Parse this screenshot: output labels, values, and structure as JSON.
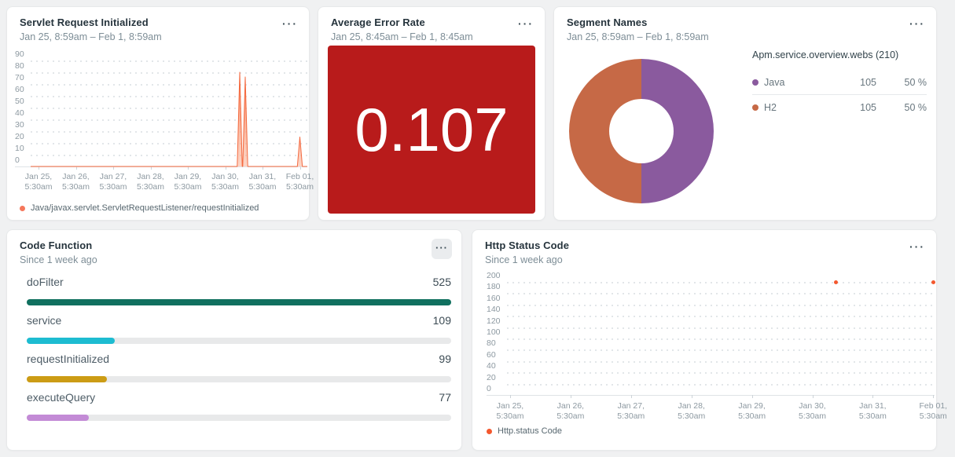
{
  "icons": {
    "overflow": "···"
  },
  "panels": {
    "servlet_request": {
      "title": "Servlet Request Initialized",
      "subtitle": "Jan 25, 8:59am – Feb 1, 8:59am",
      "legend_label": "Java/javax.servlet.ServletRequestListener/requestInitialized"
    },
    "error_rate": {
      "title": "Average Error Rate",
      "subtitle": "Jan 25, 8:45am – Feb 1, 8:45am",
      "value": "0.107"
    },
    "segment_names": {
      "title": "Segment Names",
      "subtitle": "Jan 25, 8:59am – Feb 1, 8:59am",
      "table_header": "Apm.service.overview.webs (210)"
    },
    "code_function": {
      "title": "Code Function",
      "subtitle": "Since 1 week ago"
    },
    "http_status": {
      "title": "Http Status Code",
      "subtitle": "Since 1 week ago",
      "legend_label": "Http.status Code"
    }
  },
  "chart_data": [
    {
      "id": "servlet_area",
      "type": "area",
      "title": "Servlet Request Initialized",
      "time_range": "Jan 25, 8:59am – Feb 1, 8:59am",
      "ylim": [
        0,
        90
      ],
      "y_ticks": [
        90,
        80,
        70,
        60,
        50,
        40,
        30,
        20,
        10,
        0
      ],
      "x_ticks": [
        "Jan 25,\n5:30am",
        "Jan 26,\n5:30am",
        "Jan 27,\n5:30am",
        "Jan 28,\n5:30am",
        "Jan 29,\n5:30am",
        "Jan 30,\n5:30am",
        "Jan 31,\n5:30am",
        "Feb 01,\n5:30am"
      ],
      "grid": "dotted",
      "legend_position": "bottom",
      "series": [
        {
          "name": "Java/javax.servlet.ServletRequestListener/requestInitialized",
          "color": "#f5775b",
          "baseline": 0,
          "spikes": [
            {
              "x_frac": 0.77,
              "value": 80
            },
            {
              "x_frac": 0.791,
              "value": 76
            },
            {
              "x_frac": 1.0,
              "value": 25
            }
          ]
        }
      ]
    },
    {
      "id": "error_billboard",
      "type": "billboard",
      "title": "Average Error Rate",
      "time_range": "Jan 25, 8:45am – Feb 1, 8:45am",
      "value": 0.107,
      "display": "0.107",
      "status_color": "#b81b1b"
    },
    {
      "id": "segments_donut",
      "type": "pie",
      "donut": true,
      "title": "Segment Names",
      "time_range": "Jan 25, 8:59am – Feb 1, 8:59am",
      "header": "Apm.service.overview.webs (210)",
      "total": 210,
      "slices": [
        {
          "label": "Java",
          "value": 105,
          "pct": "50 %",
          "color": "#8a5a9e"
        },
        {
          "label": "H2",
          "value": 105,
          "pct": "50 %",
          "color": "#c66946"
        }
      ]
    },
    {
      "id": "code_function_bars",
      "type": "bar",
      "orientation": "horizontal",
      "title": "Code Function",
      "time_range": "Since 1 week ago",
      "categories": [
        "doFilter",
        "service",
        "requestInitialized",
        "executeQuery"
      ],
      "values": [
        525,
        109,
        99,
        77
      ],
      "colors": [
        "#10705f",
        "#1dbcd1",
        "#cc9c15",
        "#c38bd6"
      ],
      "xlim": [
        0,
        525
      ]
    },
    {
      "id": "http_scatter",
      "type": "scatter",
      "title": "Http Status Code",
      "time_range": "Since 1 week ago",
      "ylim": [
        0,
        200
      ],
      "y_ticks": [
        200,
        180,
        160,
        140,
        120,
        100,
        80,
        60,
        40,
        20,
        0
      ],
      "x_ticks": [
        "Jan 25,\n5:30am",
        "Jan 26,\n5:30am",
        "Jan 27,\n5:30am",
        "Jan 28,\n5:30am",
        "Jan 29,\n5:30am",
        "Jan 30,\n5:30am",
        "Jan 31,\n5:30am",
        "Feb 01,\n5:30am"
      ],
      "grid": "dotted",
      "legend_position": "bottom",
      "series": [
        {
          "name": "Http.status Code",
          "color": "#f4582e",
          "points": [
            {
              "x_frac": 0.77,
              "value": 199
            },
            {
              "x_frac": 1.0,
              "value": 199
            }
          ]
        }
      ]
    }
  ]
}
